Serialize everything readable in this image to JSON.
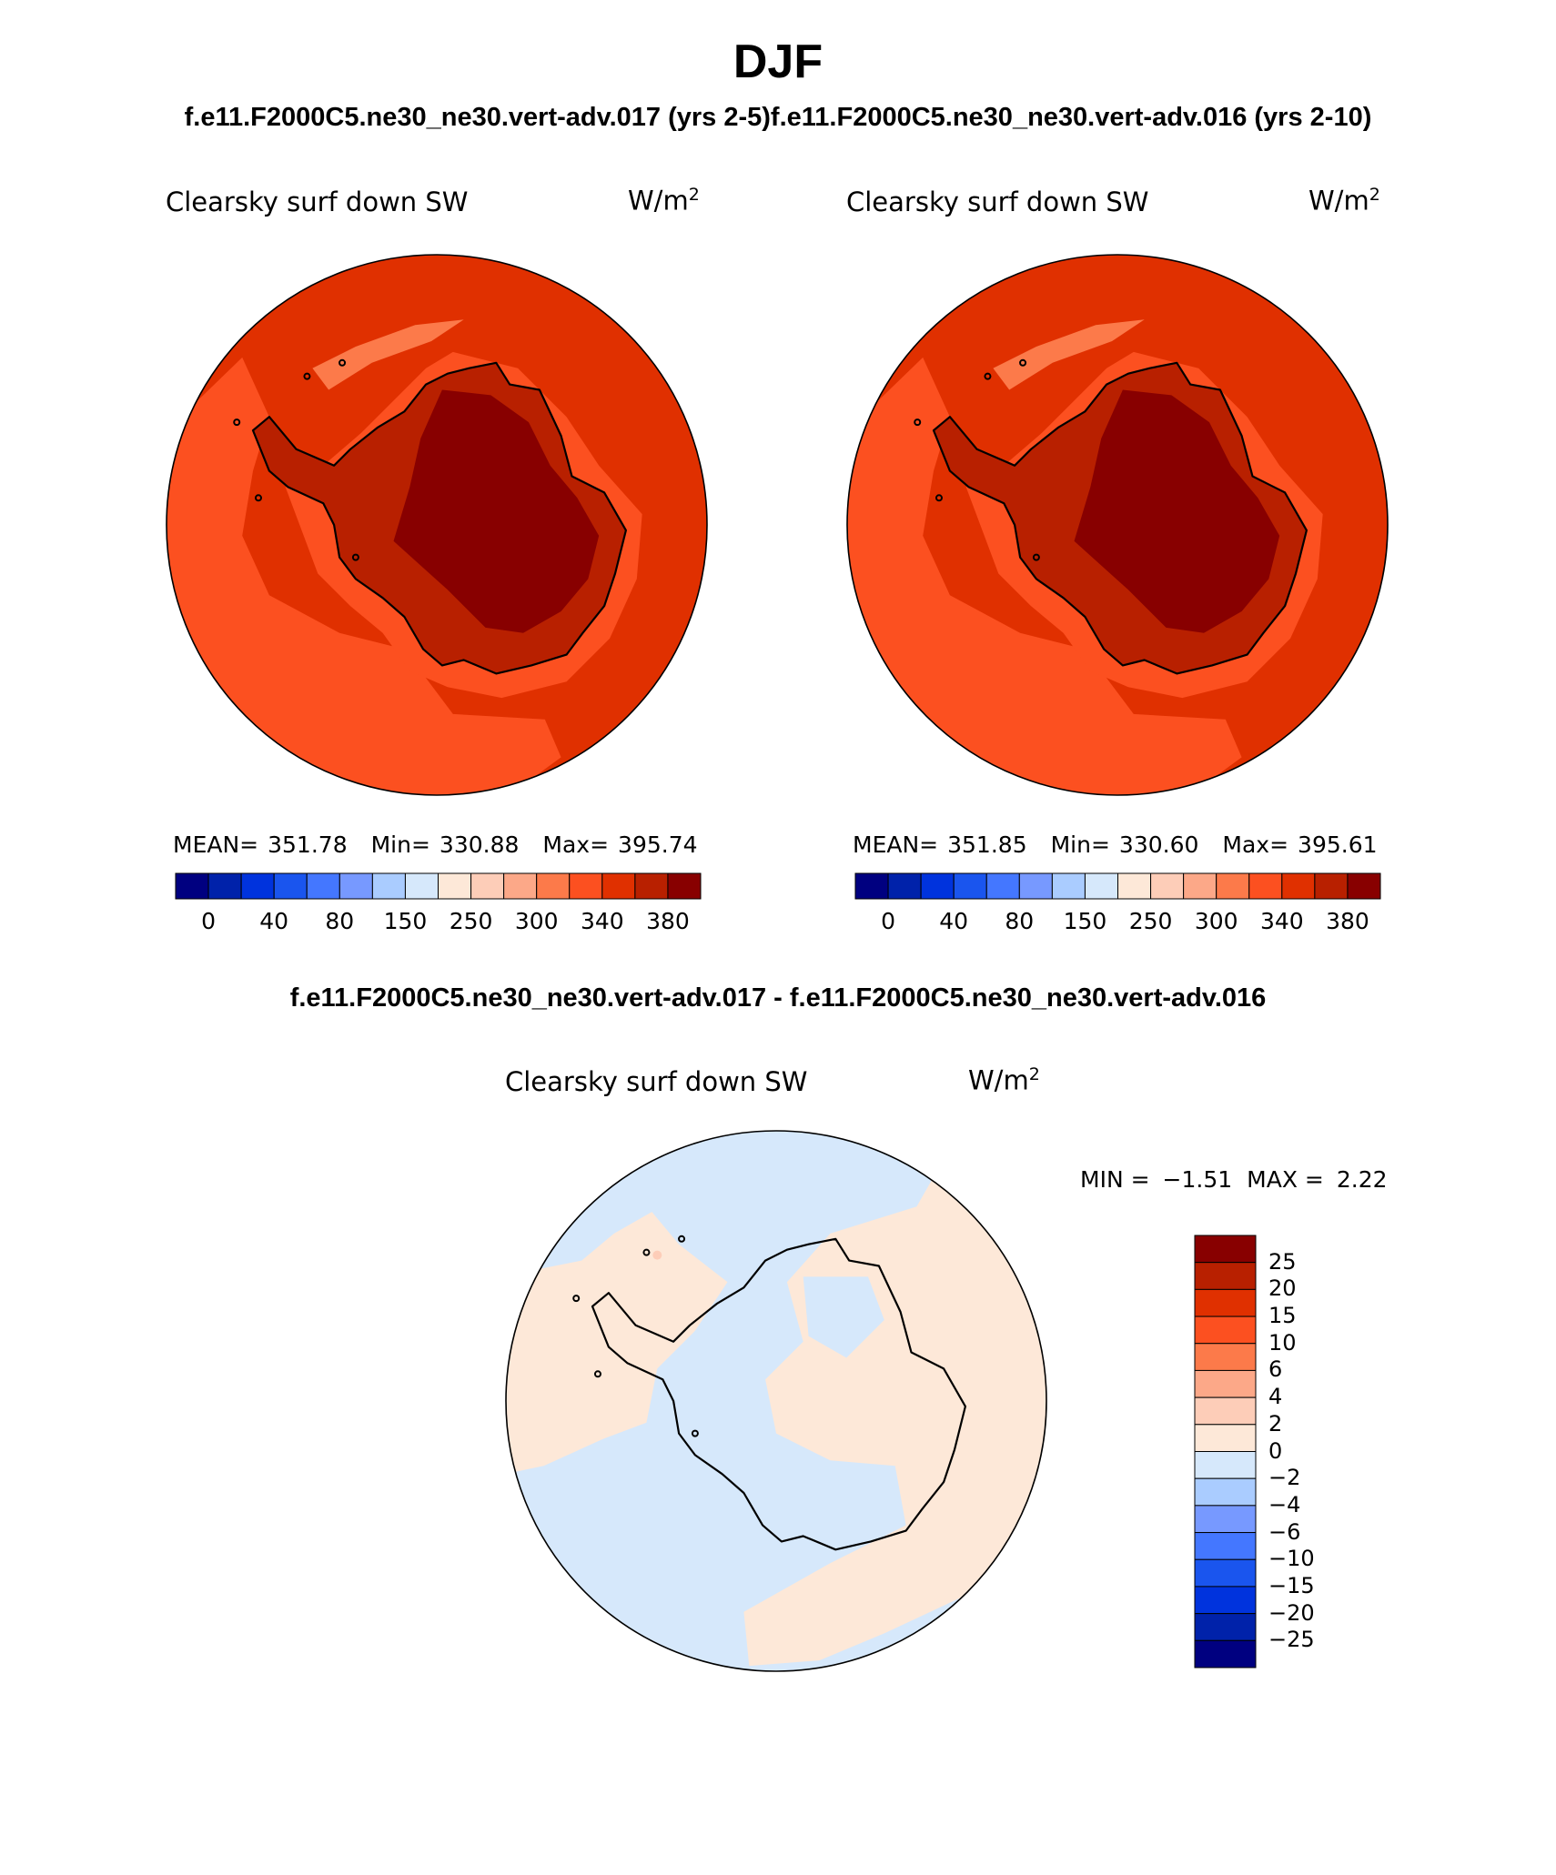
{
  "header": {
    "season": "DJF",
    "case_title": "f.e11.F2000C5.ne30_ne30.vert-adv.017 (yrs 2-5)f.e11.F2000C5.ne30_ne30.vert-adv.016 (yrs 2-10)",
    "diff_title": "f.e11.F2000C5.ne30_ne30.vert-adv.017 - f.e11.F2000C5.ne30_ne30.vert-adv.016"
  },
  "chart_data": [
    {
      "type": "heatmap",
      "projection": "south-polar-stereographic",
      "title": "Clearsky surf down SW",
      "units": "W/m",
      "units_sup": "2",
      "stats": {
        "mean_label": "MEAN=",
        "mean": "351.78",
        "min_label": "Min=",
        "min": "330.88",
        "max_label": "Max=",
        "max": "395.74"
      },
      "levels": [
        0,
        40,
        80,
        150,
        250,
        300,
        340,
        380
      ],
      "colorbar_labels": [
        "0",
        "40",
        "80",
        "150",
        "250",
        "300",
        "340",
        "380"
      ],
      "colorbar_orientation": "horizontal",
      "colors": [
        "#000080",
        "#0022aa",
        "#0033dd",
        "#1a55ee",
        "#4477ff",
        "#7799ff",
        "#aaccff",
        "#d6e8fb",
        "#fde8d8",
        "#fdcdb8",
        "#fca888",
        "#fc7a4a",
        "#fc5020",
        "#e03000",
        "#b82000",
        "#880000"
      ],
      "field_colors": {
        "ocean_low": "#fc5020",
        "ocean_high": "#e03000",
        "coast": "#b82000",
        "plateau": "#880000"
      }
    },
    {
      "type": "heatmap",
      "projection": "south-polar-stereographic",
      "title": "Clearsky surf down SW",
      "units": "W/m",
      "units_sup": "2",
      "stats": {
        "mean_label": "MEAN=",
        "mean": "351.85",
        "min_label": "Min=",
        "min": "330.60",
        "max_label": "Max=",
        "max": "395.61"
      },
      "levels": [
        0,
        40,
        80,
        150,
        250,
        300,
        340,
        380
      ],
      "colorbar_labels": [
        "0",
        "40",
        "80",
        "150",
        "250",
        "300",
        "340",
        "380"
      ],
      "colorbar_orientation": "horizontal",
      "colors": [
        "#000080",
        "#0022aa",
        "#0033dd",
        "#1a55ee",
        "#4477ff",
        "#7799ff",
        "#aaccff",
        "#d6e8fb",
        "#fde8d8",
        "#fdcdb8",
        "#fca888",
        "#fc7a4a",
        "#fc5020",
        "#e03000",
        "#b82000",
        "#880000"
      ],
      "field_colors": {
        "ocean_low": "#fc5020",
        "ocean_high": "#e03000",
        "coast": "#b82000",
        "plateau": "#880000"
      }
    },
    {
      "type": "heatmap",
      "projection": "south-polar-stereographic",
      "title": "Clearsky surf down SW",
      "units": "W/m",
      "units_sup": "2",
      "stats": {
        "min_label": "MIN =",
        "min": "−1.51",
        "max_label": "MAX =",
        "max": "2.22"
      },
      "levels": [
        -25,
        -20,
        -15,
        -10,
        -6,
        -4,
        -2,
        0,
        2,
        4,
        6,
        10,
        15,
        20,
        25
      ],
      "colorbar_labels": [
        "25",
        "20",
        "15",
        "10",
        "6",
        "4",
        "2",
        "0",
        "−2",
        "−4",
        "−6",
        "−10",
        "−15",
        "−20",
        "−25"
      ],
      "colorbar_orientation": "vertical",
      "colors": [
        "#880000",
        "#b82000",
        "#e03000",
        "#fc5020",
        "#fc7a4a",
        "#fca888",
        "#fdcdb8",
        "#fde8d8",
        "#d6e8fb",
        "#aaccff",
        "#7799ff",
        "#4477ff",
        "#1a55ee",
        "#0033dd",
        "#0022aa",
        "#000080"
      ],
      "field_colors": {
        "negative": "#d6e8fb",
        "positive": "#fde8d8",
        "spot": "#fdcdb8"
      }
    }
  ]
}
